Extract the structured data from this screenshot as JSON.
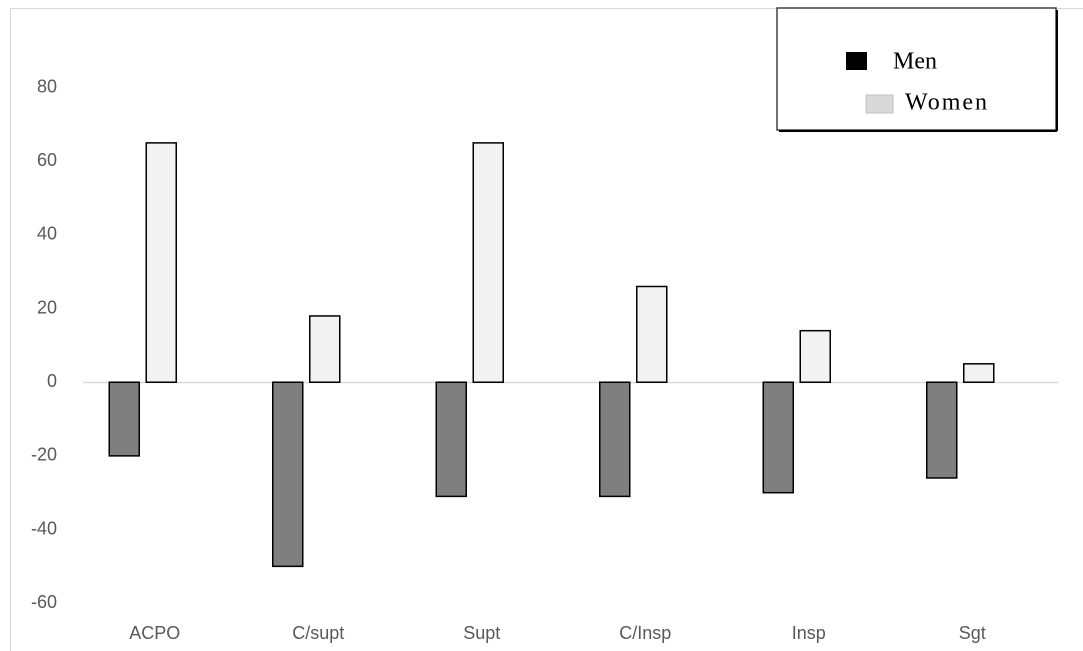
{
  "chart_data": {
    "type": "bar",
    "categories": [
      "ACPO",
      "C/supt",
      "Supt",
      "C/Insp",
      "Insp",
      "Sgt"
    ],
    "series": [
      {
        "name": "Men",
        "color": "#7f7f7f",
        "legend_color": "#000000",
        "values": [
          -20,
          -50,
          -31,
          -31,
          -30,
          -26
        ]
      },
      {
        "name": "Women",
        "color": "#f2f2f2",
        "legend_color": "#d9d9d9",
        "values": [
          65,
          18,
          65,
          26,
          14,
          5
        ]
      }
    ],
    "ylim": [
      -70,
      100
    ],
    "yticks": [
      -60,
      -40,
      -20,
      0,
      20,
      40,
      60,
      80
    ],
    "grid": false,
    "legend": "top-right"
  }
}
